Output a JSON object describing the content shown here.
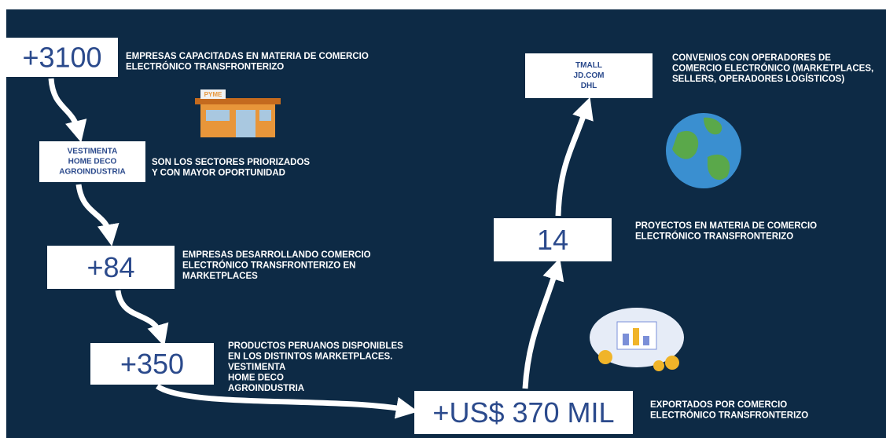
{
  "items": [
    {
      "box": [
        "+3100"
      ],
      "description": [
        "EMPRESAS CAPACITADAS EN MATERIA DE COMERCIO",
        "ELECTRÓNICO TRANSFRONTERIZO"
      ]
    },
    {
      "box": [
        "VESTIMENTA",
        "HOME DECO",
        "AGROINDUSTRIA"
      ],
      "description": [
        "SON LOS SECTORES PRIORIZADOS",
        "Y CON MAYOR OPORTUNIDAD"
      ]
    },
    {
      "box": [
        "+84"
      ],
      "description": [
        "EMPRESAS DESARROLLANDO COMERCIO",
        "ELECTRÓNICO TRANSFRONTERIZO EN",
        "MARKETPLACES"
      ]
    },
    {
      "box": [
        "+350"
      ],
      "description": [
        "PRODUCTOS PERUANOS DISPONIBLES",
        "EN LOS DISTINTOS MARKETPLACES.",
        "VESTIMENTA",
        "HOME DECO",
        "AGROINDUSTRIA"
      ]
    },
    {
      "box": [
        "+US$ 370 MIL"
      ],
      "description": [
        "EXPORTADOS POR COMERCIO",
        "ELECTRÓNICO TRANSFRONTERIZO"
      ]
    },
    {
      "box": [
        "14"
      ],
      "description": [
        "PROYECTOS EN MATERIA DE COMERCIO",
        "ELECTRÓNICO TRANSFRONTERIZO"
      ]
    },
    {
      "box": [
        "TMALL",
        "JD.COM",
        "DHL"
      ],
      "description": [
        "CONVENIOS CON OPERADORES DE",
        "COMERCIO ELECTRÓNICO (MARKETPLACES,",
        "SELLERS, OPERADORES LOGÍSTICOS)"
      ]
    }
  ],
  "store_sign": "PYME"
}
